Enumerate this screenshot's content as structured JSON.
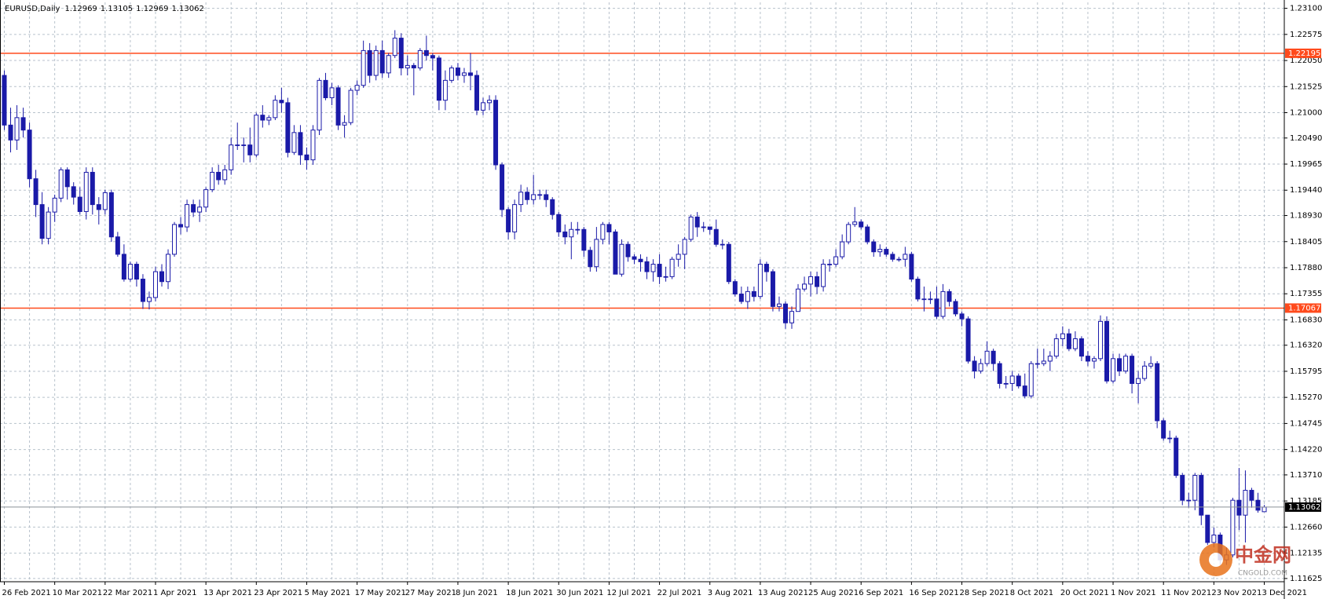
{
  "chart_data": {
    "type": "candlestick",
    "title": "EURUSD,Daily",
    "color": "#1a1aa8",
    "grid": true,
    "ylim": [
      1.1156,
      1.2322
    ],
    "yticks": [
      {
        "value": 1.231,
        "label": "1.23100"
      },
      1.22575,
      {
        "value": 1.2205,
        "label": "1.22050"
      },
      1.21525,
      {
        "value": 1.21,
        "label": "1.21000"
      },
      {
        "value": 1.2049,
        "label": "1.20490"
      },
      1.19965,
      {
        "value": 1.1944,
        "label": "1.19440"
      },
      {
        "value": 1.1893,
        "label": "1.18930"
      },
      1.18405,
      {
        "value": 1.1788,
        "label": "1.17880"
      },
      1.17355,
      {
        "value": 1.1683,
        "label": "1.16830"
      },
      {
        "value": 1.1632,
        "label": "1.16320"
      },
      1.15795,
      {
        "value": 1.1527,
        "label": "1.15270"
      },
      1.14745,
      {
        "value": 1.1422,
        "label": "1.14220"
      },
      {
        "value": 1.1371,
        "label": "1.13710"
      },
      1.13185,
      {
        "value": 1.1266,
        "label": "1.12660"
      },
      1.12135,
      1.11625
    ],
    "levels": [
      {
        "value": 1.22195,
        "color": "#ff4a1c"
      },
      {
        "value": 1.17067,
        "color": "#ff4a1c"
      }
    ],
    "watermark": {
      "text": "中金网",
      "sub": "CNGOLD.COM"
    },
    "categories": [
      "26 Feb 2021",
      null,
      null,
      null,
      null,
      null,
      null,
      null,
      "10 Mar 2021",
      null,
      null,
      null,
      null,
      null,
      null,
      null,
      "22 Mar 2021",
      null,
      null,
      null,
      null,
      null,
      null,
      null,
      "1 Apr 2021",
      null,
      null,
      null,
      null,
      null,
      null,
      null,
      "13 Apr 2021",
      null,
      null,
      null,
      null,
      null,
      null,
      null,
      "23 Apr 2021",
      null,
      null,
      null,
      null,
      null,
      null,
      null,
      "5 May 2021",
      null,
      null,
      null,
      null,
      null,
      null,
      null,
      "17 May 2021",
      null,
      null,
      null,
      null,
      null,
      null,
      null,
      "27 May 2021",
      null,
      null,
      null,
      null,
      null,
      null,
      null,
      "8 Jun 2021",
      null,
      null,
      null,
      null,
      null,
      null,
      null,
      "18 Jun 2021",
      null,
      null,
      null,
      null,
      null,
      null,
      null,
      "30 Jun 2021",
      null,
      null,
      null,
      null,
      null,
      null,
      null,
      "12 Jul 2021",
      null,
      null,
      null,
      null,
      null,
      null,
      null,
      "22 Jul 2021",
      null,
      null,
      null,
      null,
      null,
      null,
      null,
      "3 Aug 2021",
      null,
      null,
      null,
      null,
      null,
      null,
      null,
      "13 Aug 2021",
      null,
      null,
      null,
      null,
      null,
      null,
      null,
      "25 Aug 2021",
      null,
      null,
      null,
      null,
      null,
      null,
      null,
      "6 Sep 2021",
      null,
      null,
      null,
      null,
      null,
      null,
      null,
      "16 Sep 2021",
      null,
      null,
      null,
      null,
      null,
      null,
      null,
      "28 Sep 2021",
      null,
      null,
      null,
      null,
      null,
      null,
      null,
      "8 Oct 2021",
      null,
      null,
      null,
      null,
      null,
      null,
      null,
      "20 Oct 2021",
      null,
      null,
      null,
      null,
      null,
      null,
      null,
      "1 Nov 2021",
      null,
      null,
      null,
      null,
      null,
      null,
      null,
      "11 Nov 2021",
      null,
      null,
      null,
      null,
      null,
      null,
      null,
      "23 Nov 2021",
      null,
      null,
      null,
      null,
      null,
      null,
      null,
      "3 Dec 2021"
    ],
    "ohlc": [
      [
        1.2175,
        1.2185,
        1.2065,
        1.2075
      ],
      [
        1.2075,
        1.211,
        1.202,
        1.2045
      ],
      [
        1.2045,
        1.2115,
        1.2025,
        1.209
      ],
      [
        1.209,
        1.211,
        1.205,
        1.2065
      ],
      [
        1.2065,
        1.208,
        1.195,
        1.1967
      ],
      [
        1.1967,
        1.1985,
        1.189,
        1.1915
      ],
      [
        1.1915,
        1.194,
        1.1835,
        1.1847
      ],
      [
        1.1847,
        1.191,
        1.1835,
        1.19
      ],
      [
        1.19,
        1.1935,
        1.188,
        1.1928
      ],
      [
        1.1928,
        1.199,
        1.192,
        1.1985
      ],
      [
        1.1985,
        1.199,
        1.1925,
        1.1951
      ],
      [
        1.1951,
        1.196,
        1.1915,
        1.193
      ],
      [
        1.193,
        1.195,
        1.1895,
        1.1901
      ],
      [
        1.1901,
        1.199,
        1.1885,
        1.198
      ],
      [
        1.198,
        1.199,
        1.1895,
        1.1915
      ],
      [
        1.1915,
        1.193,
        1.1875,
        1.1905
      ],
      [
        1.1905,
        1.1945,
        1.1895,
        1.1939
      ],
      [
        1.1939,
        1.1945,
        1.184,
        1.185
      ],
      [
        1.185,
        1.186,
        1.181,
        1.1815
      ],
      [
        1.1815,
        1.1835,
        1.176,
        1.1765
      ],
      [
        1.1765,
        1.18,
        1.176,
        1.1795
      ],
      [
        1.1795,
        1.18,
        1.175,
        1.1765
      ],
      [
        1.1765,
        1.1775,
        1.1705,
        1.172
      ],
      [
        1.172,
        1.174,
        1.1704,
        1.1728
      ],
      [
        1.1728,
        1.179,
        1.172,
        1.178
      ],
      [
        1.178,
        1.1795,
        1.175,
        1.176
      ],
      [
        1.176,
        1.1825,
        1.1745,
        1.1815
      ],
      [
        1.1815,
        1.188,
        1.181,
        1.1875
      ],
      [
        1.1875,
        1.189,
        1.1855,
        1.187
      ],
      [
        1.187,
        1.1925,
        1.186,
        1.1915
      ],
      [
        1.1915,
        1.1925,
        1.189,
        1.19
      ],
      [
        1.19,
        1.1925,
        1.188,
        1.191
      ],
      [
        1.191,
        1.195,
        1.19,
        1.1945
      ],
      [
        1.1945,
        1.199,
        1.194,
        1.198
      ],
      [
        1.198,
        1.1995,
        1.1955,
        1.1965
      ],
      [
        1.1965,
        1.1995,
        1.1955,
        1.1985
      ],
      [
        1.1985,
        1.205,
        1.1975,
        1.2035
      ],
      [
        1.2035,
        1.208,
        1.2025,
        1.2035
      ],
      [
        1.2035,
        1.205,
        1.2,
        1.2035
      ],
      [
        1.2035,
        1.207,
        1.2,
        1.2015
      ],
      [
        1.2015,
        1.21,
        1.201,
        1.2095
      ],
      [
        1.2095,
        1.2115,
        1.207,
        1.2085
      ],
      [
        1.2085,
        1.2095,
        1.2075,
        1.209
      ],
      [
        1.209,
        1.2135,
        1.2085,
        1.2125
      ],
      [
        1.2125,
        1.215,
        1.21,
        1.212
      ],
      [
        1.212,
        1.213,
        1.201,
        1.202
      ],
      [
        1.202,
        1.2075,
        1.2015,
        1.206
      ],
      [
        1.206,
        1.2075,
        1.1995,
        1.2015
      ],
      [
        1.2015,
        1.203,
        1.1985,
        1.2005
      ],
      [
        1.2005,
        1.2075,
        1.1995,
        1.2065
      ],
      [
        1.2065,
        1.217,
        1.2055,
        1.2165
      ],
      [
        1.2165,
        1.218,
        1.2125,
        1.213
      ],
      [
        1.213,
        1.216,
        1.2115,
        1.215
      ],
      [
        1.215,
        1.2155,
        1.2065,
        1.2075
      ],
      [
        1.2075,
        1.2095,
        1.205,
        1.208
      ],
      [
        1.208,
        1.215,
        1.2075,
        1.2145
      ],
      [
        1.2145,
        1.2165,
        1.2135,
        1.2155
      ],
      [
        1.2155,
        1.2245,
        1.215,
        1.2225
      ],
      [
        1.2225,
        1.224,
        1.216,
        1.2175
      ],
      [
        1.2175,
        1.2235,
        1.2165,
        1.2225
      ],
      [
        1.2225,
        1.2245,
        1.217,
        1.218
      ],
      [
        1.218,
        1.222,
        1.217,
        1.2215
      ],
      [
        1.2215,
        1.2266,
        1.221,
        1.225
      ],
      [
        1.225,
        1.226,
        1.2175,
        1.219
      ],
      [
        1.219,
        1.2215,
        1.2175,
        1.2195
      ],
      [
        1.2195,
        1.22,
        1.2135,
        1.219
      ],
      [
        1.219,
        1.223,
        1.2185,
        1.2225
      ],
      [
        1.2225,
        1.2255,
        1.2205,
        1.2215
      ],
      [
        1.2215,
        1.222,
        1.2185,
        1.221
      ],
      [
        1.221,
        1.2215,
        1.2105,
        1.2125
      ],
      [
        1.2125,
        1.2185,
        1.2105,
        1.2165
      ],
      [
        1.2165,
        1.2195,
        1.216,
        1.219
      ],
      [
        1.219,
        1.22,
        1.2165,
        1.2175
      ],
      [
        1.2175,
        1.219,
        1.216,
        1.218
      ],
      [
        1.218,
        1.222,
        1.2145,
        1.2175
      ],
      [
        1.2175,
        1.2185,
        1.2095,
        1.2105
      ],
      [
        1.2105,
        1.213,
        1.2095,
        1.212
      ],
      [
        1.212,
        1.2135,
        1.2105,
        1.2125
      ],
      [
        1.2125,
        1.2135,
        1.1985,
        1.1995
      ],
      [
        1.1995,
        1.2,
        1.189,
        1.1905
      ],
      [
        1.1905,
        1.191,
        1.1845,
        1.186
      ],
      [
        1.186,
        1.1925,
        1.1845,
        1.1915
      ],
      [
        1.1915,
        1.1955,
        1.19,
        1.194
      ],
      [
        1.194,
        1.195,
        1.1915,
        1.1925
      ],
      [
        1.1925,
        1.1975,
        1.1915,
        1.1935
      ],
      [
        1.1935,
        1.1945,
        1.1925,
        1.1935
      ],
      [
        1.1935,
        1.1945,
        1.191,
        1.1925
      ],
      [
        1.1925,
        1.193,
        1.1885,
        1.1895
      ],
      [
        1.1895,
        1.19,
        1.185,
        1.186
      ],
      [
        1.186,
        1.1875,
        1.1835,
        1.185
      ],
      [
        1.185,
        1.188,
        1.1805,
        1.1865
      ],
      [
        1.1865,
        1.188,
        1.1855,
        1.1865
      ],
      [
        1.1865,
        1.187,
        1.181,
        1.1823
      ],
      [
        1.1823,
        1.183,
        1.178,
        1.179
      ],
      [
        1.179,
        1.187,
        1.178,
        1.1845
      ],
      [
        1.1845,
        1.188,
        1.1835,
        1.1875
      ],
      [
        1.1875,
        1.188,
        1.1835,
        1.186
      ],
      [
        1.186,
        1.1865,
        1.1775,
        1.1775
      ],
      [
        1.1775,
        1.1845,
        1.177,
        1.1835
      ],
      [
        1.1835,
        1.184,
        1.18,
        1.181
      ],
      [
        1.181,
        1.1815,
        1.1795,
        1.1805
      ],
      [
        1.1805,
        1.1815,
        1.178,
        1.18
      ],
      [
        1.18,
        1.181,
        1.1765,
        1.178
      ],
      [
        1.178,
        1.1805,
        1.176,
        1.1795
      ],
      [
        1.1795,
        1.1815,
        1.1755,
        1.177
      ],
      [
        1.177,
        1.179,
        1.176,
        1.177
      ],
      [
        1.177,
        1.181,
        1.1765,
        1.1805
      ],
      [
        1.1805,
        1.1835,
        1.179,
        1.1815
      ],
      [
        1.1815,
        1.185,
        1.1785,
        1.1845
      ],
      [
        1.1845,
        1.1895,
        1.184,
        1.189
      ],
      [
        1.189,
        1.19,
        1.185,
        1.187
      ],
      [
        1.187,
        1.188,
        1.186,
        1.187
      ],
      [
        1.187,
        1.187,
        1.1855,
        1.1865
      ],
      [
        1.1865,
        1.1885,
        1.183,
        1.1835
      ],
      [
        1.1835,
        1.1845,
        1.1825,
        1.1835
      ],
      [
        1.1835,
        1.184,
        1.1755,
        1.176
      ],
      [
        1.176,
        1.1765,
        1.173,
        1.1735
      ],
      [
        1.1735,
        1.175,
        1.1715,
        1.172
      ],
      [
        1.172,
        1.175,
        1.1705,
        1.174
      ],
      [
        1.174,
        1.175,
        1.172,
        1.173
      ],
      [
        1.173,
        1.1805,
        1.1725,
        1.1795
      ],
      [
        1.1795,
        1.18,
        1.176,
        1.178
      ],
      [
        1.178,
        1.1785,
        1.17,
        1.171
      ],
      [
        1.171,
        1.173,
        1.17,
        1.1715
      ],
      [
        1.1715,
        1.172,
        1.1665,
        1.1677
      ],
      [
        1.1677,
        1.171,
        1.1665,
        1.17
      ],
      [
        1.17,
        1.1755,
        1.17,
        1.1745
      ],
      [
        1.1745,
        1.177,
        1.174,
        1.1755
      ],
      [
        1.1755,
        1.178,
        1.173,
        1.177
      ],
      [
        1.177,
        1.178,
        1.1735,
        1.175
      ],
      [
        1.175,
        1.1805,
        1.174,
        1.1795
      ],
      [
        1.1795,
        1.1805,
        1.178,
        1.1795
      ],
      [
        1.1795,
        1.1825,
        1.179,
        1.181
      ],
      [
        1.181,
        1.1855,
        1.1805,
        1.184
      ],
      [
        1.184,
        1.188,
        1.1835,
        1.1875
      ],
      [
        1.1875,
        1.191,
        1.187,
        1.188
      ],
      [
        1.188,
        1.1885,
        1.1865,
        1.187
      ],
      [
        1.187,
        1.1875,
        1.1835,
        1.184
      ],
      [
        1.184,
        1.1845,
        1.181,
        1.182
      ],
      [
        1.182,
        1.1835,
        1.181,
        1.1825
      ],
      [
        1.1825,
        1.183,
        1.181,
        1.1815
      ],
      [
        1.1815,
        1.182,
        1.18,
        1.1805
      ],
      [
        1.1805,
        1.181,
        1.18,
        1.1805
      ],
      [
        1.1805,
        1.183,
        1.179,
        1.1815
      ],
      [
        1.1815,
        1.182,
        1.176,
        1.1765
      ],
      [
        1.1765,
        1.177,
        1.172,
        1.1725
      ],
      [
        1.1725,
        1.175,
        1.17,
        1.1725
      ],
      [
        1.1725,
        1.174,
        1.1715,
        1.1725
      ],
      [
        1.1725,
        1.175,
        1.1685,
        1.169
      ],
      [
        1.169,
        1.1755,
        1.1685,
        1.174
      ],
      [
        1.174,
        1.1745,
        1.171,
        1.172
      ],
      [
        1.172,
        1.1725,
        1.169,
        1.1695
      ],
      [
        1.1695,
        1.17,
        1.167,
        1.1685
      ],
      [
        1.1685,
        1.169,
        1.1595,
        1.16
      ],
      [
        1.16,
        1.161,
        1.1565,
        1.158
      ],
      [
        1.158,
        1.1605,
        1.1575,
        1.1595
      ],
      [
        1.1595,
        1.164,
        1.159,
        1.162
      ],
      [
        1.162,
        1.1625,
        1.158,
        1.1595
      ],
      [
        1.1595,
        1.16,
        1.1545,
        1.1555
      ],
      [
        1.1555,
        1.157,
        1.1545,
        1.1555
      ],
      [
        1.1555,
        1.158,
        1.154,
        1.157
      ],
      [
        1.157,
        1.1575,
        1.1545,
        1.155
      ],
      [
        1.155,
        1.1575,
        1.1525,
        1.153
      ],
      [
        1.153,
        1.16,
        1.1525,
        1.1595
      ],
      [
        1.1595,
        1.1625,
        1.1585,
        1.1595
      ],
      [
        1.1595,
        1.1625,
        1.159,
        1.16
      ],
      [
        1.16,
        1.162,
        1.158,
        1.161
      ],
      [
        1.161,
        1.1655,
        1.1605,
        1.1645
      ],
      [
        1.1645,
        1.167,
        1.163,
        1.1655
      ],
      [
        1.1655,
        1.1665,
        1.162,
        1.1625
      ],
      [
        1.1625,
        1.166,
        1.162,
        1.1645
      ],
      [
        1.1645,
        1.165,
        1.16,
        1.161
      ],
      [
        1.161,
        1.162,
        1.159,
        1.16
      ],
      [
        1.16,
        1.161,
        1.1585,
        1.1605
      ],
      [
        1.1605,
        1.1692,
        1.16,
        1.168
      ],
      [
        1.168,
        1.169,
        1.1555,
        1.156
      ],
      [
        1.156,
        1.1615,
        1.1555,
        1.1605
      ],
      [
        1.1605,
        1.1615,
        1.157,
        1.158
      ],
      [
        1.158,
        1.1615,
        1.1575,
        1.161
      ],
      [
        1.161,
        1.1615,
        1.1535,
        1.1555
      ],
      [
        1.1555,
        1.158,
        1.1515,
        1.1565
      ],
      [
        1.1565,
        1.16,
        1.156,
        1.159
      ],
      [
        1.159,
        1.161,
        1.1585,
        1.1595
      ],
      [
        1.1595,
        1.16,
        1.1465,
        1.148
      ],
      [
        1.148,
        1.1485,
        1.144,
        1.1445
      ],
      [
        1.1445,
        1.146,
        1.1435,
        1.1445
      ],
      [
        1.1445,
        1.145,
        1.1365,
        1.137
      ],
      [
        1.137,
        1.1375,
        1.131,
        1.132
      ],
      [
        1.132,
        1.1335,
        1.1305,
        1.132
      ],
      [
        1.132,
        1.1375,
        1.13,
        1.137
      ],
      [
        1.137,
        1.1375,
        1.127,
        1.129
      ],
      [
        1.129,
        1.129,
        1.123,
        1.1235
      ],
      [
        1.1235,
        1.1265,
        1.1225,
        1.125
      ],
      [
        1.125,
        1.1255,
        1.119,
        1.12
      ],
      [
        1.12,
        1.1225,
        1.119,
        1.121
      ],
      [
        1.121,
        1.1325,
        1.1205,
        1.132
      ],
      [
        1.132,
        1.1385,
        1.126,
        1.129
      ],
      [
        1.129,
        1.138,
        1.1235,
        1.134
      ],
      [
        1.134,
        1.1345,
        1.1305,
        1.132
      ],
      [
        1.132,
        1.1335,
        1.1295,
        1.13
      ],
      [
        1.12969,
        1.13105,
        1.12969,
        1.13062
      ]
    ]
  }
}
